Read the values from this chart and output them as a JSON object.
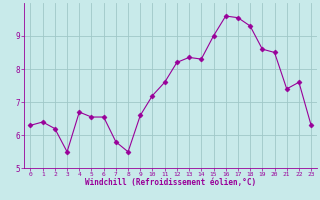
{
  "x": [
    0,
    1,
    2,
    3,
    4,
    5,
    6,
    7,
    8,
    9,
    10,
    11,
    12,
    13,
    14,
    15,
    16,
    17,
    18,
    19,
    20,
    21,
    22,
    23
  ],
  "y": [
    6.3,
    6.4,
    6.2,
    5.5,
    6.7,
    6.55,
    6.55,
    5.8,
    5.5,
    6.6,
    7.2,
    7.6,
    8.2,
    8.35,
    8.3,
    9.0,
    9.6,
    9.55,
    9.3,
    8.6,
    8.5,
    7.4,
    7.6,
    6.3
  ],
  "line_color": "#990099",
  "marker": "D",
  "marker_size": 2.5,
  "bg_color": "#c8eaea",
  "grid_color": "#a0c8c8",
  "xlabel": "Windchill (Refroidissement éolien,°C)",
  "xlabel_color": "#990099",
  "tick_color": "#990099",
  "label_color": "#990099",
  "ylim": [
    5,
    10
  ],
  "xlim": [
    -0.5,
    23.5
  ],
  "yticks": [
    5,
    6,
    7,
    8,
    9
  ],
  "xticks": [
    0,
    1,
    2,
    3,
    4,
    5,
    6,
    7,
    8,
    9,
    10,
    11,
    12,
    13,
    14,
    15,
    16,
    17,
    18,
    19,
    20,
    21,
    22,
    23
  ],
  "xtick_labels": [
    "0",
    "1",
    "2",
    "3",
    "4",
    "5",
    "6",
    "7",
    "8",
    "9",
    "10",
    "11",
    "12",
    "13",
    "14",
    "15",
    "16",
    "17",
    "18",
    "19",
    "20",
    "21",
    "22",
    "23"
  ]
}
